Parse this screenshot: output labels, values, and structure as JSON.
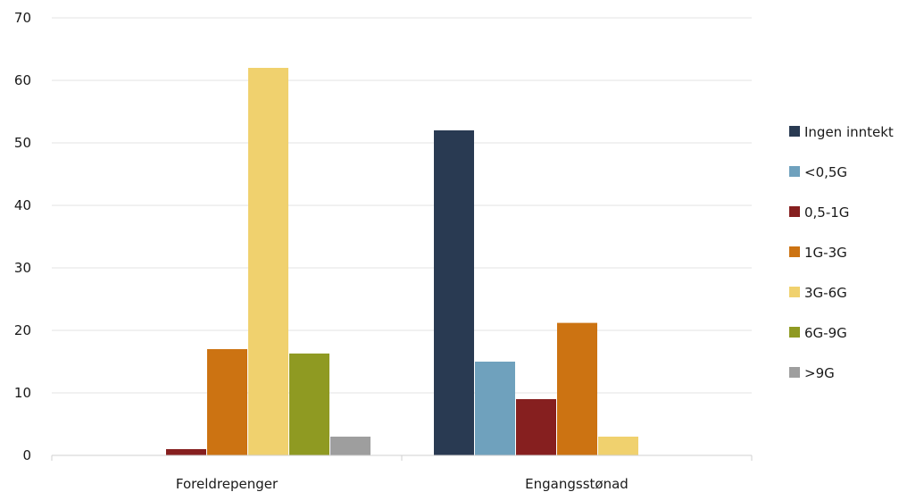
{
  "chart_data": {
    "type": "bar",
    "categories": [
      "Foreldrepenger",
      "Engangsstønad"
    ],
    "series": [
      {
        "name": "Ingen inntekt",
        "color": "#293a52",
        "values": [
          0,
          52
        ]
      },
      {
        "name": "<0,5G",
        "color": "#6fa1bd",
        "values": [
          0,
          15
        ]
      },
      {
        "name": "0,5-1G",
        "color": "#861f1f",
        "values": [
          1,
          9
        ]
      },
      {
        "name": "1G-3G",
        "color": "#cc7312",
        "values": [
          17,
          21.2
        ]
      },
      {
        "name": "3G-6G",
        "color": "#f0d16e",
        "values": [
          62,
          3
        ]
      },
      {
        "name": "6G-9G",
        "color": "#8f9a22",
        "values": [
          16.3,
          0
        ]
      },
      {
        "name": ">9G",
        "color": "#9e9e9e",
        "values": [
          3,
          0
        ]
      }
    ],
    "ylim": [
      0,
      70
    ],
    "yticks": [
      0,
      10,
      20,
      30,
      40,
      50,
      60,
      70
    ],
    "grid": true,
    "legend": "right"
  }
}
